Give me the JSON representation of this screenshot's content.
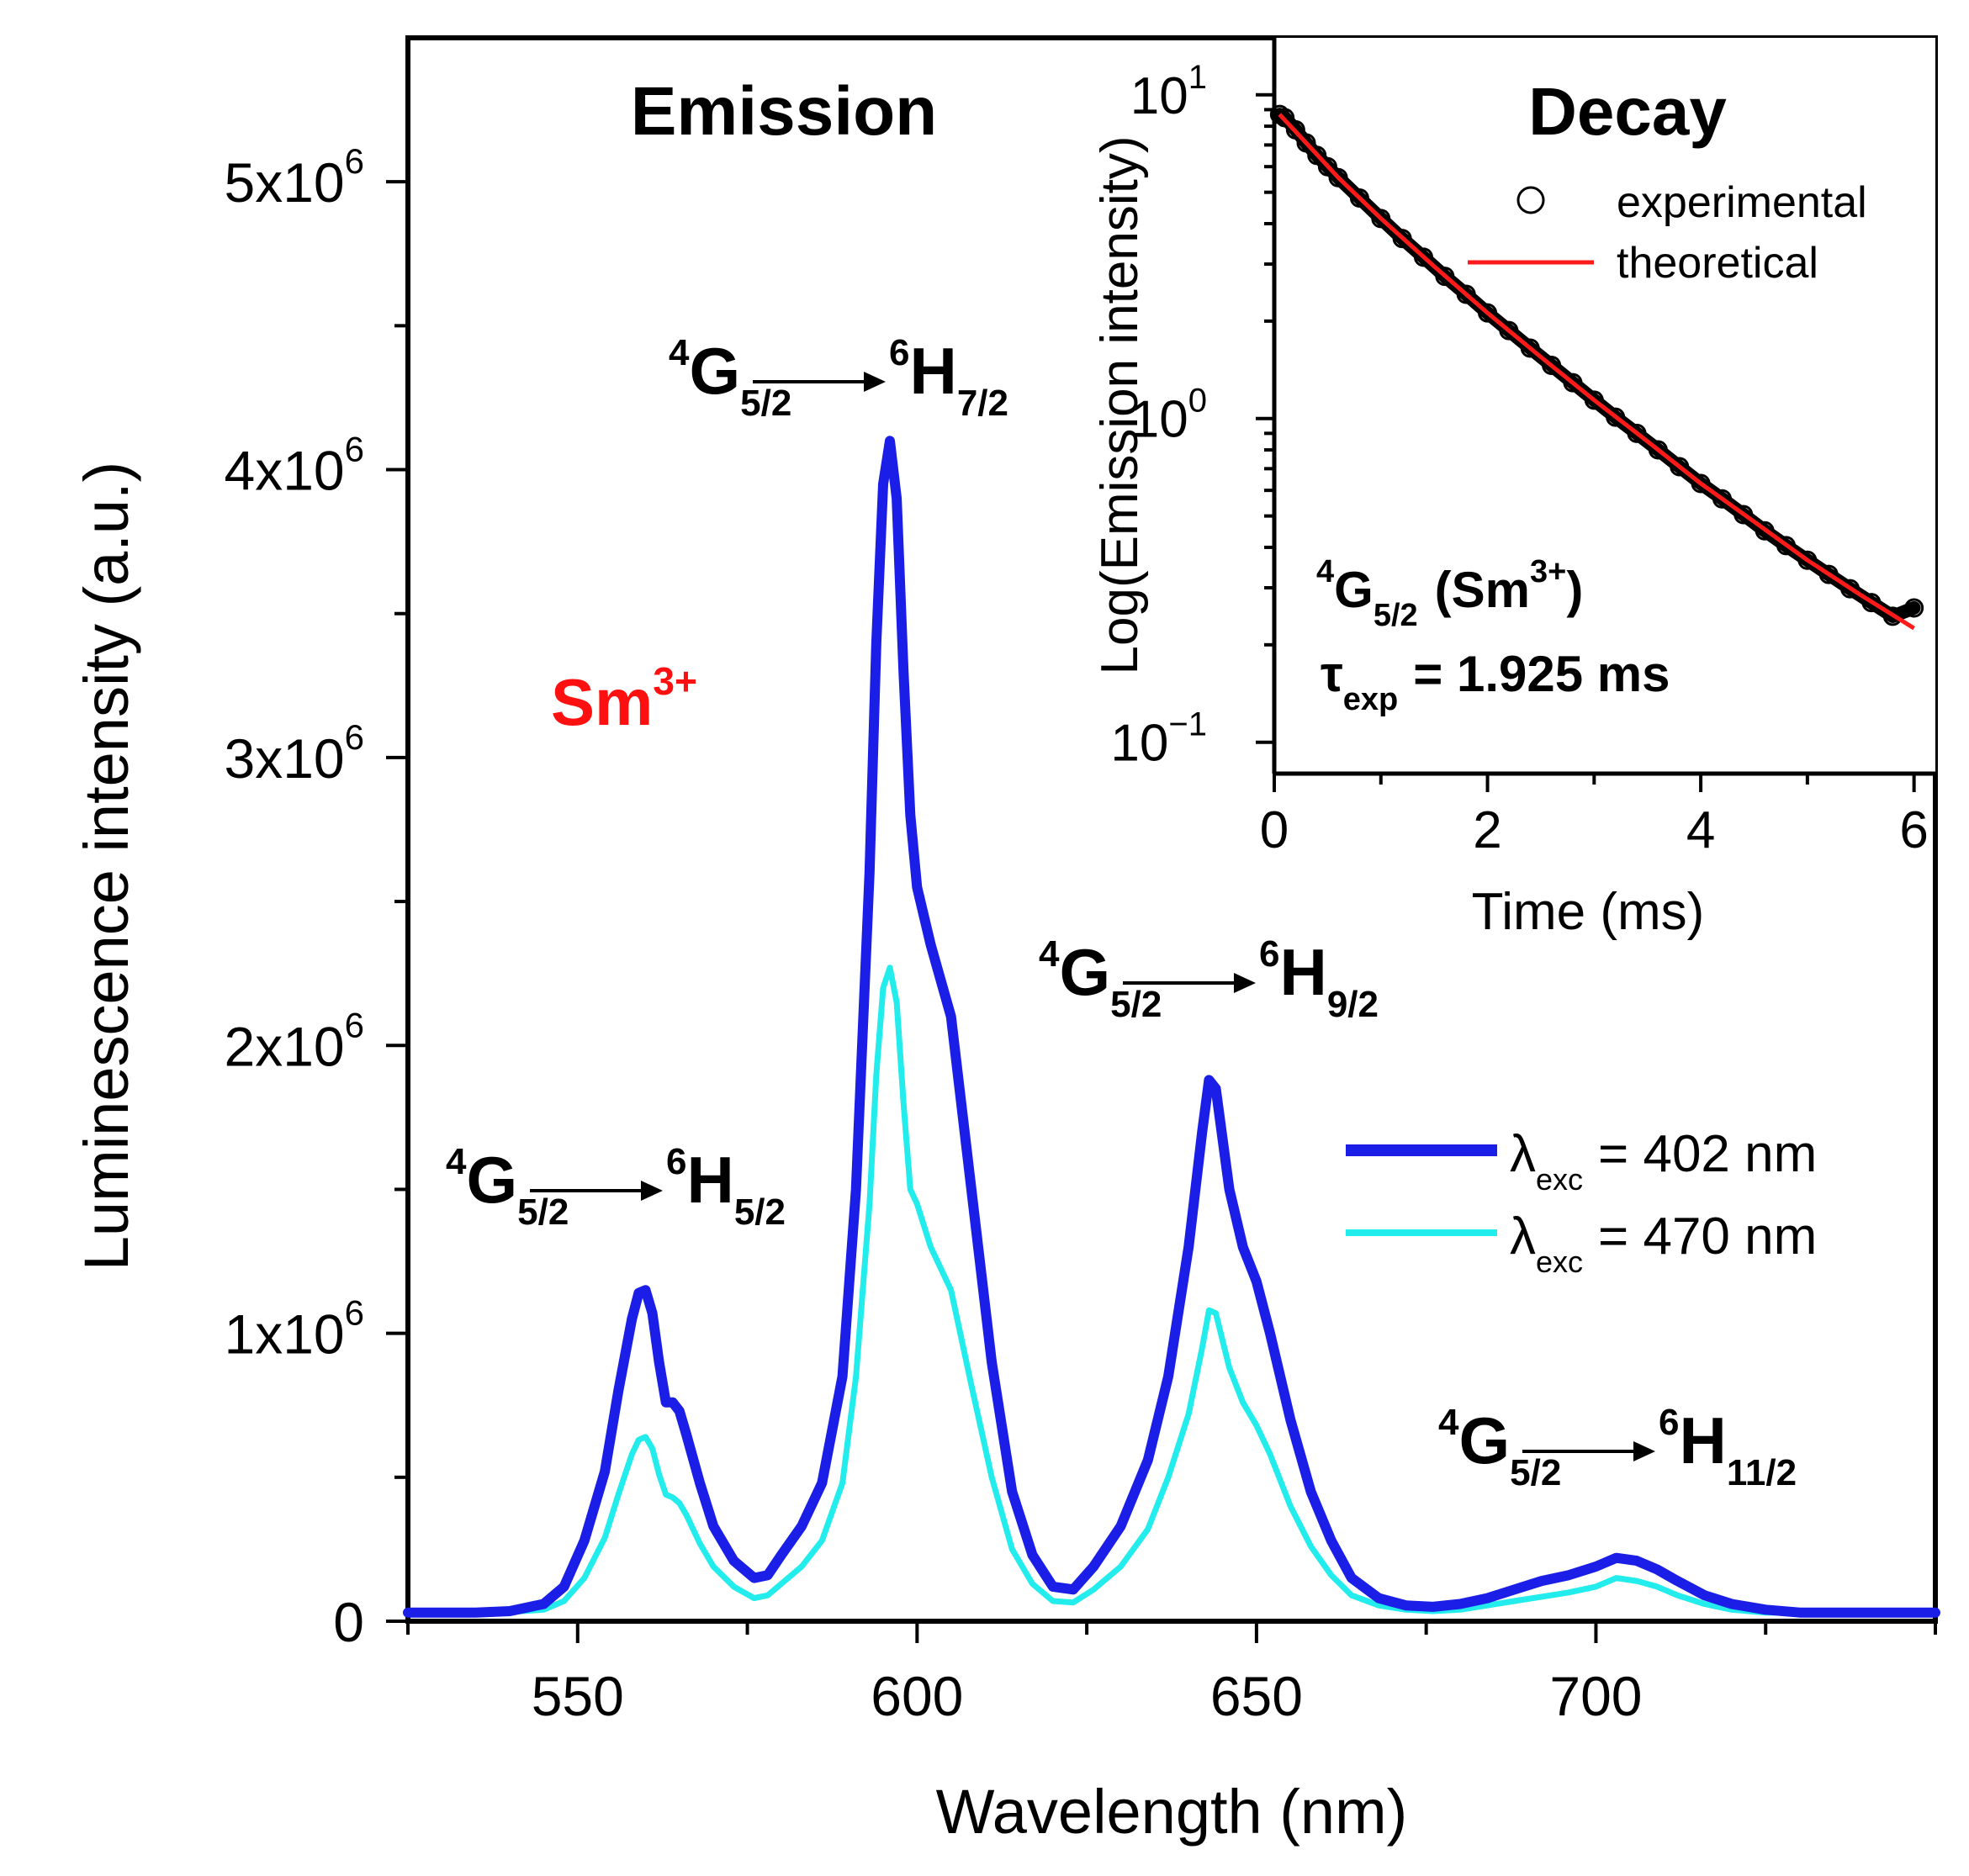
{
  "colors": {
    "series_402": "#1a1ee6",
    "series_470": "#22ecec",
    "fit_line": "#ff1a1a",
    "sm_label": "#ff1010",
    "axis": "#000000"
  },
  "labels": {
    "panel_title": "Emission",
    "ion_label": "Sm",
    "ion_sup": "3+",
    "transitions": [
      {
        "g": "4",
        "G": "G",
        "gsub": "5/2",
        "h": "6",
        "H": "H",
        "hsub": "5/2"
      },
      {
        "g": "4",
        "G": "G",
        "gsub": "5/2",
        "h": "6",
        "H": "H",
        "hsub": "7/2"
      },
      {
        "g": "4",
        "G": "G",
        "gsub": "5/2",
        "h": "6",
        "H": "H",
        "hsub": "9/2"
      },
      {
        "g": "4",
        "G": "G",
        "gsub": "5/2",
        "h": "6",
        "H": "H",
        "hsub": "11/2"
      }
    ]
  },
  "legend": {
    "items": [
      {
        "symbol": "λ",
        "sub": "exc",
        "text": "= 402 nm"
      },
      {
        "symbol": "λ",
        "sub": "exc",
        "text": "= 470 nm"
      }
    ]
  },
  "inset": {
    "title": "Decay",
    "legend": [
      "experimental",
      "theoretical"
    ],
    "level_prefix": "4",
    "level_G": "G",
    "level_sub": "5/2",
    "level_ion_open": "(Sm",
    "level_ion_sup": "3+",
    "level_ion_close": ")",
    "tau_symbol": "τ",
    "tau_sub": "exp",
    "tau_value": "= 1.925 ms"
  },
  "chart_data": [
    {
      "type": "line",
      "title": "Emission",
      "xlabel": "Wavelength (nm)",
      "ylabel": "Luminescence intensity (a.u.)",
      "xlim": [
        525,
        750
      ],
      "ylim": [
        0,
        5500000
      ],
      "xticks": [
        550,
        600,
        650,
        700
      ],
      "xtick_labels": [
        "550",
        "600",
        "650",
        "700"
      ],
      "yticks": [
        0,
        1000000,
        2000000,
        3000000,
        4000000,
        5000000
      ],
      "ytick_labels": [
        {
          "base": "0",
          "exp": ""
        },
        {
          "base": "1x10",
          "exp": "6"
        },
        {
          "base": "2x10",
          "exp": "6"
        },
        {
          "base": "3x10",
          "exp": "6"
        },
        {
          "base": "4x10",
          "exp": "6"
        },
        {
          "base": "5x10",
          "exp": "6"
        }
      ],
      "series": [
        {
          "name": "λexc = 402 nm",
          "x": [
            525,
            535,
            540,
            545,
            548,
            551,
            554,
            556,
            558,
            559,
            560,
            561,
            562,
            563,
            564,
            565,
            566,
            568,
            570,
            573,
            576,
            578,
            580,
            583,
            586,
            589,
            591,
            593,
            594,
            595,
            596,
            597,
            598,
            599,
            600,
            602,
            605,
            608,
            611,
            614,
            617,
            620,
            623,
            626,
            630,
            634,
            637,
            640,
            642,
            643,
            644,
            646,
            648,
            650,
            652,
            655,
            658,
            661,
            664,
            668,
            672,
            676,
            680,
            684,
            688,
            692,
            696,
            700,
            703,
            706,
            709,
            712,
            716,
            720,
            725,
            730,
            740,
            750
          ],
          "values": [
            30000,
            30000,
            35000,
            60000,
            120000,
            280000,
            520000,
            800000,
            1050000,
            1140000,
            1150000,
            1070000,
            900000,
            760000,
            760000,
            730000,
            650000,
            480000,
            330000,
            210000,
            150000,
            160000,
            230000,
            330000,
            480000,
            850000,
            1500000,
            2600000,
            3400000,
            3950000,
            4100000,
            3900000,
            3300000,
            2800000,
            2550000,
            2350000,
            2100000,
            1500000,
            900000,
            450000,
            230000,
            120000,
            110000,
            190000,
            330000,
            560000,
            850000,
            1300000,
            1700000,
            1880000,
            1850000,
            1500000,
            1300000,
            1180000,
            1000000,
            700000,
            450000,
            280000,
            150000,
            80000,
            55000,
            50000,
            60000,
            80000,
            110000,
            140000,
            160000,
            190000,
            220000,
            210000,
            180000,
            140000,
            90000,
            60000,
            40000,
            30000,
            30000,
            30000
          ]
        },
        {
          "name": "λexc = 470 nm",
          "x": [
            525,
            535,
            540,
            545,
            548,
            551,
            554,
            556,
            558,
            559,
            560,
            561,
            562,
            563,
            564,
            565,
            566,
            568,
            570,
            573,
            576,
            578,
            580,
            583,
            586,
            589,
            591,
            593,
            594,
            595,
            596,
            597,
            598,
            599,
            600,
            602,
            605,
            608,
            611,
            614,
            617,
            620,
            623,
            626,
            630,
            634,
            637,
            640,
            642,
            643,
            644,
            646,
            648,
            650,
            652,
            655,
            658,
            661,
            664,
            668,
            672,
            676,
            680,
            684,
            688,
            692,
            696,
            700,
            703,
            706,
            709,
            712,
            716,
            720,
            725,
            730,
            740,
            750
          ],
          "values": [
            30000,
            30000,
            32000,
            40000,
            70000,
            150000,
            290000,
            440000,
            580000,
            630000,
            640000,
            600000,
            510000,
            440000,
            430000,
            410000,
            370000,
            270000,
            190000,
            120000,
            80000,
            90000,
            130000,
            190000,
            280000,
            480000,
            850000,
            1450000,
            1900000,
            2200000,
            2270000,
            2150000,
            1800000,
            1500000,
            1450000,
            1300000,
            1150000,
            820000,
            500000,
            250000,
            130000,
            70000,
            65000,
            110000,
            190000,
            320000,
            500000,
            720000,
            950000,
            1080000,
            1070000,
            880000,
            760000,
            680000,
            580000,
            400000,
            260000,
            160000,
            90000,
            55000,
            40000,
            35000,
            40000,
            55000,
            70000,
            85000,
            100000,
            120000,
            150000,
            140000,
            120000,
            90000,
            60000,
            40000,
            30000,
            30000,
            30000,
            30000
          ]
        }
      ]
    },
    {
      "type": "scatter",
      "title": "Decay",
      "xlabel": "Time (ms)",
      "ylabel": "Log(Emission intensity)",
      "xlim": [
        0,
        6.2
      ],
      "ylim": [
        0.08,
        15
      ],
      "yscale": "log",
      "xticks": [
        0,
        2,
        4,
        6
      ],
      "xtick_labels": [
        "0",
        "2",
        "4",
        "6"
      ],
      "yticks": [
        0.1,
        1,
        10
      ],
      "ytick_labels": [
        {
          "base": "10",
          "exp": "−1"
        },
        {
          "base": "10",
          "exp": "0"
        },
        {
          "base": "10",
          "exp": "1"
        }
      ],
      "series": [
        {
          "name": "experimental",
          "x": [
            0.05,
            0.1,
            0.2,
            0.3,
            0.4,
            0.5,
            0.6,
            0.8,
            1.0,
            1.2,
            1.4,
            1.6,
            1.8,
            2.0,
            2.2,
            2.4,
            2.6,
            2.8,
            3.0,
            3.2,
            3.4,
            3.6,
            3.8,
            4.0,
            4.2,
            4.4,
            4.6,
            4.8,
            5.0,
            5.2,
            5.4,
            5.6,
            5.8,
            6.0
          ],
          "values": [
            8.7,
            8.5,
            7.8,
            7.1,
            6.5,
            6.0,
            5.55,
            4.8,
            4.15,
            3.6,
            3.15,
            2.75,
            2.42,
            2.12,
            1.87,
            1.65,
            1.46,
            1.29,
            1.14,
            1.01,
            0.9,
            0.8,
            0.71,
            0.63,
            0.565,
            0.505,
            0.45,
            0.405,
            0.365,
            0.33,
            0.298,
            0.27,
            0.245,
            0.26
          ]
        },
        {
          "name": "theoretical",
          "x": [
            0.05,
            0.3,
            0.6,
            1.0,
            1.5,
            2.0,
            2.5,
            3.0,
            3.5,
            4.0,
            4.5,
            5.0,
            5.5,
            6.0
          ],
          "values": [
            8.7,
            7.1,
            5.55,
            4.15,
            2.95,
            2.12,
            1.55,
            1.14,
            0.85,
            0.63,
            0.48,
            0.365,
            0.285,
            0.225
          ]
        }
      ]
    }
  ]
}
